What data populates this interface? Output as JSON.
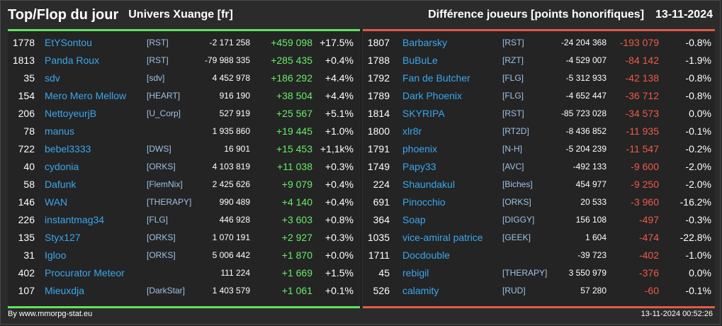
{
  "header": {
    "title": "Top/Flop du jour",
    "universe": "Univers Xuange [fr]",
    "metric": "Différence joueurs [points honorifiques]",
    "date": "13-11-2024"
  },
  "colors": {
    "top_accent": "#5fe35f",
    "flop_accent": "#e05a4a",
    "name": "#3aa6ee",
    "positive": "#66ee66",
    "negative": "#ee5a4a"
  },
  "top": [
    {
      "rank": "1778",
      "name": "EtYSontou",
      "guild": "[RST]",
      "total": "-2 171 258",
      "diff": "+459 098",
      "pct": "+17.5%"
    },
    {
      "rank": "1813",
      "name": "Panda Roux",
      "guild": "[RST]",
      "total": "-79 988 335",
      "diff": "+285 435",
      "pct": "+0.4%"
    },
    {
      "rank": "35",
      "name": "sdv",
      "guild": "[sdv]",
      "total": "4 452 978",
      "diff": "+186 292",
      "pct": "+4.4%"
    },
    {
      "rank": "154",
      "name": "Mero Mero Mellow",
      "guild": "[HEART]",
      "total": "916 190",
      "diff": "+38 504",
      "pct": "+4.4%"
    },
    {
      "rank": "206",
      "name": "NettoyeurjB",
      "guild": "[U_Corp]",
      "total": "527 919",
      "diff": "+25 567",
      "pct": "+5.1%"
    },
    {
      "rank": "78",
      "name": "manus",
      "guild": "",
      "total": "1 935 860",
      "diff": "+19 445",
      "pct": "+1.0%"
    },
    {
      "rank": "722",
      "name": "bebel3333",
      "guild": "[DWS]",
      "total": "16 901",
      "diff": "+15 453",
      "pct": "+1,1k%"
    },
    {
      "rank": "40",
      "name": "cydonia",
      "guild": "[ORKS]",
      "total": "4 103 819",
      "diff": "+11 038",
      "pct": "+0.3%"
    },
    {
      "rank": "58",
      "name": "Dafunk",
      "guild": "[FlemNix]",
      "total": "2 425 626",
      "diff": "+9 079",
      "pct": "+0.4%"
    },
    {
      "rank": "146",
      "name": "WAN",
      "guild": "[THERAPY]",
      "total": "990 489",
      "diff": "+4 140",
      "pct": "+0.4%"
    },
    {
      "rank": "226",
      "name": "instantmag34",
      "guild": "[FLG]",
      "total": "446 928",
      "diff": "+3 603",
      "pct": "+0.8%"
    },
    {
      "rank": "135",
      "name": "Styx127",
      "guild": "[ORKS]",
      "total": "1 070 191",
      "diff": "+2 927",
      "pct": "+0.3%"
    },
    {
      "rank": "31",
      "name": "Igloo",
      "guild": "[ORKS]",
      "total": "5 006 442",
      "diff": "+1 870",
      "pct": "+0.0%"
    },
    {
      "rank": "402",
      "name": "Procurator Meteor",
      "guild": "",
      "total": "111 224",
      "diff": "+1 669",
      "pct": "+1.5%"
    },
    {
      "rank": "107",
      "name": "Mieuxdja",
      "guild": "[DarkStar]",
      "total": "1 403 579",
      "diff": "+1 061",
      "pct": "+0.1%"
    }
  ],
  "flop": [
    {
      "rank": "1807",
      "name": "Barbarsky",
      "guild": "[RST]",
      "total": "-24 204 368",
      "diff": "-193 079",
      "pct": "-0.8%"
    },
    {
      "rank": "1788",
      "name": "BuBuLe",
      "guild": "[RZT]",
      "total": "-4 529 007",
      "diff": "-84 142",
      "pct": "-1.9%"
    },
    {
      "rank": "1792",
      "name": "Fan de Butcher",
      "guild": "[FLG]",
      "total": "-5 312 933",
      "diff": "-42 138",
      "pct": "-0.8%"
    },
    {
      "rank": "1789",
      "name": "Dark Phoenix",
      "guild": "[FLG]",
      "total": "-4 652 447",
      "diff": "-36 712",
      "pct": "-0.8%"
    },
    {
      "rank": "1814",
      "name": "SKYRIPA",
      "guild": "[RST]",
      "total": "-85 723 028",
      "diff": "-34 573",
      "pct": "0.0%"
    },
    {
      "rank": "1800",
      "name": "xlr8r",
      "guild": "[RT2D]",
      "total": "-8 436 852",
      "diff": "-11 935",
      "pct": "-0.1%"
    },
    {
      "rank": "1791",
      "name": "phoenix",
      "guild": "[N-H]",
      "total": "-5 204 239",
      "diff": "-11 547",
      "pct": "-0.2%"
    },
    {
      "rank": "1749",
      "name": "Papy33",
      "guild": "[AVC]",
      "total": "-492 133",
      "diff": "-9 600",
      "pct": "-2.0%"
    },
    {
      "rank": "224",
      "name": "Shaundakul",
      "guild": "[Biches]",
      "total": "454 977",
      "diff": "-9 250",
      "pct": "-2.0%"
    },
    {
      "rank": "691",
      "name": "Pinocchio",
      "guild": "[ORKS]",
      "total": "20 533",
      "diff": "-3 960",
      "pct": "-16.2%"
    },
    {
      "rank": "364",
      "name": "Soap",
      "guild": "[DIGGY]",
      "total": "156 108",
      "diff": "-497",
      "pct": "-0.3%"
    },
    {
      "rank": "1035",
      "name": "vice-amiral patrice",
      "guild": "[GEEK]",
      "total": "1 604",
      "diff": "-474",
      "pct": "-22.8%"
    },
    {
      "rank": "1711",
      "name": "Docdouble",
      "guild": "",
      "total": "-39 723",
      "diff": "-402",
      "pct": "-1.0%"
    },
    {
      "rank": "45",
      "name": "rebigil",
      "guild": "[THERAPY]",
      "total": "3 550 979",
      "diff": "-376",
      "pct": "0.0%"
    },
    {
      "rank": "526",
      "name": "calamity",
      "guild": "[RUD]",
      "total": "57 280",
      "diff": "-60",
      "pct": "-0.1%"
    }
  ],
  "footer": {
    "credit": "By www.mmorpg-stat.eu",
    "timestamp": "13-11-2024 00:52:26"
  }
}
